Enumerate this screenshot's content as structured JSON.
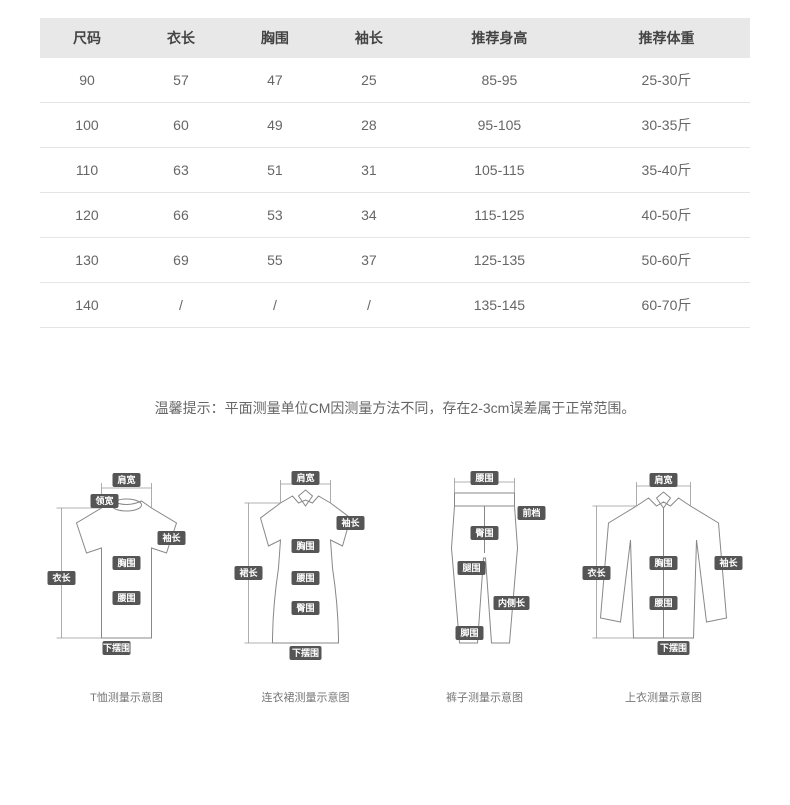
{
  "table": {
    "columns": [
      "尺码",
      "衣长",
      "胸围",
      "袖长",
      "推荐身高",
      "推荐体重"
    ],
    "rows": [
      [
        "90",
        "57",
        "47",
        "25",
        "85-95",
        "25-30斤"
      ],
      [
        "100",
        "60",
        "49",
        "28",
        "95-105",
        "30-35斤"
      ],
      [
        "110",
        "63",
        "51",
        "31",
        "105-115",
        "35-40斤"
      ],
      [
        "120",
        "66",
        "53",
        "34",
        "115-125",
        "40-50斤"
      ],
      [
        "130",
        "69",
        "55",
        "37",
        "125-135",
        "50-60斤"
      ],
      [
        "140",
        "/",
        "/",
        "/",
        "135-145",
        "60-70斤"
      ]
    ],
    "header_bg": "#e8e8e8",
    "border_color": "#e5e5e5",
    "text_color": "#666666"
  },
  "hint": "温馨提示：平面测量单位CM因测量方法不同，存在2-3cm误差属于正常范围。",
  "diagrams": [
    {
      "caption": "T恤测量示意图",
      "labels": {
        "shoulder": "肩宽",
        "collar": "领宽",
        "sleeve": "袖长",
        "chest": "胸围",
        "length": "衣长",
        "waist": "腰围",
        "hem": "下摆围"
      }
    },
    {
      "caption": "连衣裙测量示意图",
      "labels": {
        "shoulder": "肩宽",
        "sleeve": "袖长",
        "chest": "胸围",
        "skirt_len": "裙长",
        "waist": "腰围",
        "hip": "臀围",
        "hem": "下摆围"
      }
    },
    {
      "caption": "裤子测量示意图",
      "labels": {
        "waist": "腰围",
        "rise": "前档",
        "hip": "臀围",
        "thigh": "腿围",
        "inseam": "内侧长",
        "leg_open": "脚围"
      }
    },
    {
      "caption": "上衣测量示意图",
      "labels": {
        "shoulder": "肩宽",
        "length": "衣长",
        "chest": "胸围",
        "sleeve": "袖长",
        "waist": "腰围",
        "hem": "下摆围"
      }
    }
  ],
  "colors": {
    "label_box": "#555555",
    "label_text": "#ffffff",
    "stroke": "#888888",
    "caption": "#777777"
  }
}
